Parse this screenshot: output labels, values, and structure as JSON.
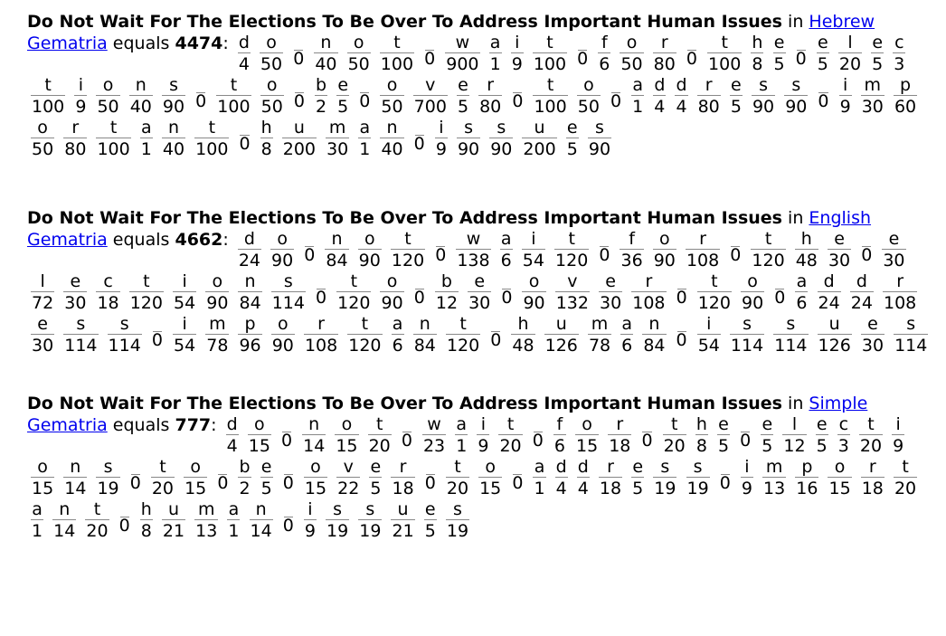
{
  "entries": [
    {
      "phrase": "Do Not Wait For The Elections To Be Over To Address Important Human Issues",
      "in_text": "in",
      "system": "Hebrew Gematria",
      "equals_text": "equals",
      "total": "4474",
      "letters": [
        [
          "d",
          "4"
        ],
        [
          "o",
          "50"
        ],
        [
          "_",
          "0"
        ],
        [
          "n",
          "40"
        ],
        [
          "o",
          "50"
        ],
        [
          "t",
          "100"
        ],
        [
          "_",
          "0"
        ],
        [
          "w",
          "900"
        ],
        [
          "a",
          "1"
        ],
        [
          "i",
          "9"
        ],
        [
          "t",
          "100"
        ],
        [
          "_",
          "0"
        ],
        [
          "f",
          "6"
        ],
        [
          "o",
          "50"
        ],
        [
          "r",
          "80"
        ],
        [
          "_",
          "0"
        ],
        [
          "t",
          "100"
        ],
        [
          "h",
          "8"
        ],
        [
          "e",
          "5"
        ],
        [
          "_",
          "0"
        ],
        [
          "e",
          "5"
        ],
        [
          "l",
          "20"
        ],
        [
          "e",
          "5"
        ],
        [
          "c",
          "3"
        ],
        [
          "t",
          "100"
        ],
        [
          "i",
          "9"
        ],
        [
          "o",
          "50"
        ],
        [
          "n",
          "40"
        ],
        [
          "s",
          "90"
        ],
        [
          "_",
          "0"
        ],
        [
          "t",
          "100"
        ],
        [
          "o",
          "50"
        ],
        [
          "_",
          "0"
        ],
        [
          "b",
          "2"
        ],
        [
          "e",
          "5"
        ],
        [
          "_",
          "0"
        ],
        [
          "o",
          "50"
        ],
        [
          "v",
          "700"
        ],
        [
          "e",
          "5"
        ],
        [
          "r",
          "80"
        ],
        [
          "_",
          "0"
        ],
        [
          "t",
          "100"
        ],
        [
          "o",
          "50"
        ],
        [
          "_",
          "0"
        ],
        [
          "a",
          "1"
        ],
        [
          "d",
          "4"
        ],
        [
          "d",
          "4"
        ],
        [
          "r",
          "80"
        ],
        [
          "e",
          "5"
        ],
        [
          "s",
          "90"
        ],
        [
          "s",
          "90"
        ],
        [
          "_",
          "0"
        ],
        [
          "i",
          "9"
        ],
        [
          "m",
          "30"
        ],
        [
          "p",
          "60"
        ],
        [
          "o",
          "50"
        ],
        [
          "r",
          "80"
        ],
        [
          "t",
          "100"
        ],
        [
          "a",
          "1"
        ],
        [
          "n",
          "40"
        ],
        [
          "t",
          "100"
        ],
        [
          "_",
          "0"
        ],
        [
          "h",
          "8"
        ],
        [
          "u",
          "200"
        ],
        [
          "m",
          "30"
        ],
        [
          "a",
          "1"
        ],
        [
          "n",
          "40"
        ],
        [
          "_",
          "0"
        ],
        [
          "i",
          "9"
        ],
        [
          "s",
          "90"
        ],
        [
          "s",
          "90"
        ],
        [
          "u",
          "200"
        ],
        [
          "e",
          "5"
        ],
        [
          "s",
          "90"
        ]
      ]
    },
    {
      "phrase": "Do Not Wait For The Elections To Be Over To Address Important Human Issues",
      "in_text": "in",
      "system": "English Gematria",
      "equals_text": "equals",
      "total": "4662",
      "letters": [
        [
          "d",
          "24"
        ],
        [
          "o",
          "90"
        ],
        [
          "_",
          "0"
        ],
        [
          "n",
          "84"
        ],
        [
          "o",
          "90"
        ],
        [
          "t",
          "120"
        ],
        [
          "_",
          "0"
        ],
        [
          "w",
          "138"
        ],
        [
          "a",
          "6"
        ],
        [
          "i",
          "54"
        ],
        [
          "t",
          "120"
        ],
        [
          "_",
          "0"
        ],
        [
          "f",
          "36"
        ],
        [
          "o",
          "90"
        ],
        [
          "r",
          "108"
        ],
        [
          "_",
          "0"
        ],
        [
          "t",
          "120"
        ],
        [
          "h",
          "48"
        ],
        [
          "e",
          "30"
        ],
        [
          "_",
          "0"
        ],
        [
          "e",
          "30"
        ],
        [
          "l",
          "72"
        ],
        [
          "e",
          "30"
        ],
        [
          "c",
          "18"
        ],
        [
          "t",
          "120"
        ],
        [
          "i",
          "54"
        ],
        [
          "o",
          "90"
        ],
        [
          "n",
          "84"
        ],
        [
          "s",
          "114"
        ],
        [
          "_",
          "0"
        ],
        [
          "t",
          "120"
        ],
        [
          "o",
          "90"
        ],
        [
          "_",
          "0"
        ],
        [
          "b",
          "12"
        ],
        [
          "e",
          "30"
        ],
        [
          "_",
          "0"
        ],
        [
          "o",
          "90"
        ],
        [
          "v",
          "132"
        ],
        [
          "e",
          "30"
        ],
        [
          "r",
          "108"
        ],
        [
          "_",
          "0"
        ],
        [
          "t",
          "120"
        ],
        [
          "o",
          "90"
        ],
        [
          "_",
          "0"
        ],
        [
          "a",
          "6"
        ],
        [
          "d",
          "24"
        ],
        [
          "d",
          "24"
        ],
        [
          "r",
          "108"
        ],
        [
          "e",
          "30"
        ],
        [
          "s",
          "114"
        ],
        [
          "s",
          "114"
        ],
        [
          "_",
          "0"
        ],
        [
          "i",
          "54"
        ],
        [
          "m",
          "78"
        ],
        [
          "p",
          "96"
        ],
        [
          "o",
          "90"
        ],
        [
          "r",
          "108"
        ],
        [
          "t",
          "120"
        ],
        [
          "a",
          "6"
        ],
        [
          "n",
          "84"
        ],
        [
          "t",
          "120"
        ],
        [
          "_",
          "0"
        ],
        [
          "h",
          "48"
        ],
        [
          "u",
          "126"
        ],
        [
          "m",
          "78"
        ],
        [
          "a",
          "6"
        ],
        [
          "n",
          "84"
        ],
        [
          "_",
          "0"
        ],
        [
          "i",
          "54"
        ],
        [
          "s",
          "114"
        ],
        [
          "s",
          "114"
        ],
        [
          "u",
          "126"
        ],
        [
          "e",
          "30"
        ],
        [
          "s",
          "114"
        ]
      ]
    },
    {
      "phrase": "Do Not Wait For The Elections To Be Over To Address Important Human Issues",
      "in_text": "in",
      "system": "Simple Gematria",
      "equals_text": "equals",
      "total": "777",
      "letters": [
        [
          "d",
          "4"
        ],
        [
          "o",
          "15"
        ],
        [
          "_",
          "0"
        ],
        [
          "n",
          "14"
        ],
        [
          "o",
          "15"
        ],
        [
          "t",
          "20"
        ],
        [
          "_",
          "0"
        ],
        [
          "w",
          "23"
        ],
        [
          "a",
          "1"
        ],
        [
          "i",
          "9"
        ],
        [
          "t",
          "20"
        ],
        [
          "_",
          "0"
        ],
        [
          "f",
          "6"
        ],
        [
          "o",
          "15"
        ],
        [
          "r",
          "18"
        ],
        [
          "_",
          "0"
        ],
        [
          "t",
          "20"
        ],
        [
          "h",
          "8"
        ],
        [
          "e",
          "5"
        ],
        [
          "_",
          "0"
        ],
        [
          "e",
          "5"
        ],
        [
          "l",
          "12"
        ],
        [
          "e",
          "5"
        ],
        [
          "c",
          "3"
        ],
        [
          "t",
          "20"
        ],
        [
          "i",
          "9"
        ],
        [
          "o",
          "15"
        ],
        [
          "n",
          "14"
        ],
        [
          "s",
          "19"
        ],
        [
          "_",
          "0"
        ],
        [
          "t",
          "20"
        ],
        [
          "o",
          "15"
        ],
        [
          "_",
          "0"
        ],
        [
          "b",
          "2"
        ],
        [
          "e",
          "5"
        ],
        [
          "_",
          "0"
        ],
        [
          "o",
          "15"
        ],
        [
          "v",
          "22"
        ],
        [
          "e",
          "5"
        ],
        [
          "r",
          "18"
        ],
        [
          "_",
          "0"
        ],
        [
          "t",
          "20"
        ],
        [
          "o",
          "15"
        ],
        [
          "_",
          "0"
        ],
        [
          "a",
          "1"
        ],
        [
          "d",
          "4"
        ],
        [
          "d",
          "4"
        ],
        [
          "r",
          "18"
        ],
        [
          "e",
          "5"
        ],
        [
          "s",
          "19"
        ],
        [
          "s",
          "19"
        ],
        [
          "_",
          "0"
        ],
        [
          "i",
          "9"
        ],
        [
          "m",
          "13"
        ],
        [
          "p",
          "16"
        ],
        [
          "o",
          "15"
        ],
        [
          "r",
          "18"
        ],
        [
          "t",
          "20"
        ],
        [
          "a",
          "1"
        ],
        [
          "n",
          "14"
        ],
        [
          "t",
          "20"
        ],
        [
          "_",
          "0"
        ],
        [
          "h",
          "8"
        ],
        [
          "u",
          "21"
        ],
        [
          "m",
          "13"
        ],
        [
          "a",
          "1"
        ],
        [
          "n",
          "14"
        ],
        [
          "_",
          "0"
        ],
        [
          "i",
          "9"
        ],
        [
          "s",
          "19"
        ],
        [
          "s",
          "19"
        ],
        [
          "u",
          "21"
        ],
        [
          "e",
          "5"
        ],
        [
          "s",
          "19"
        ]
      ]
    }
  ]
}
